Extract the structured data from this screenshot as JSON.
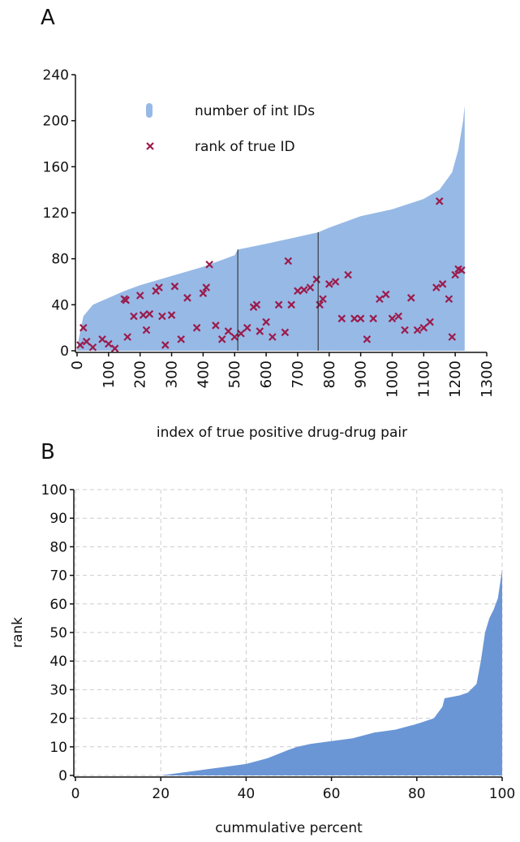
{
  "chart_data": [
    {
      "type": "area_scatter",
      "panel_label": "A",
      "xlabel": "index of true positive drug-drug pair",
      "xlim": [
        0,
        1300
      ],
      "xticks": [
        0,
        100,
        200,
        300,
        400,
        500,
        600,
        700,
        800,
        900,
        1000,
        1100,
        1200,
        1300
      ],
      "ylim": [
        0,
        240
      ],
      "yticks": [
        0,
        40,
        80,
        120,
        160,
        200,
        240
      ],
      "grid": false,
      "vlines": [
        510,
        765
      ],
      "series": [
        {
          "name": "number of int IDs",
          "color": "#97b9e6",
          "kind": "area",
          "x": [
            0,
            5,
            20,
            50,
            100,
            150,
            200,
            300,
            400,
            500,
            510,
            600,
            700,
            765,
            800,
            900,
            1000,
            1100,
            1150,
            1190,
            1210,
            1225,
            1230
          ],
          "values": [
            0,
            10,
            30,
            40,
            46,
            52,
            57,
            65,
            73,
            83,
            88,
            93,
            99,
            103,
            107,
            117,
            123,
            132,
            140,
            155,
            175,
            200,
            213
          ]
        },
        {
          "name": "rank of true ID",
          "color": "#9b1b4b",
          "kind": "scatter",
          "x": [
            10,
            20,
            30,
            50,
            80,
            100,
            120,
            150,
            155,
            160,
            180,
            200,
            210,
            220,
            230,
            250,
            260,
            270,
            280,
            300,
            310,
            330,
            350,
            380,
            400,
            410,
            420,
            440,
            460,
            480,
            500,
            520,
            540,
            560,
            570,
            580,
            600,
            620,
            640,
            660,
            670,
            680,
            700,
            720,
            740,
            760,
            770,
            780,
            800,
            820,
            840,
            860,
            880,
            900,
            920,
            940,
            960,
            980,
            1000,
            1020,
            1040,
            1060,
            1080,
            1100,
            1120,
            1140,
            1150,
            1160,
            1180,
            1190,
            1200,
            1210,
            1220
          ],
          "values": [
            5,
            20,
            8,
            3,
            10,
            6,
            2,
            45,
            44,
            12,
            30,
            48,
            31,
            18,
            32,
            52,
            55,
            30,
            5,
            31,
            56,
            10,
            46,
            20,
            50,
            55,
            75,
            22,
            10,
            17,
            12,
            15,
            20,
            38,
            40,
            17,
            25,
            12,
            40,
            16,
            78,
            40,
            52,
            53,
            55,
            62,
            40,
            45,
            58,
            60,
            28,
            66,
            28,
            28,
            10,
            28,
            45,
            49,
            28,
            30,
            18,
            46,
            18,
            20,
            25,
            55,
            130,
            58,
            45,
            12,
            66,
            71,
            70
          ]
        }
      ]
    },
    {
      "type": "area",
      "panel_label": "B",
      "xlabel": "cummulative percent",
      "ylabel": "rank",
      "xlim": [
        0,
        100
      ],
      "xticks": [
        0,
        20,
        40,
        60,
        80,
        100
      ],
      "ylim": [
        0,
        100
      ],
      "yticks": [
        0,
        10,
        20,
        30,
        40,
        50,
        60,
        70,
        80,
        90,
        100
      ],
      "grid": true,
      "series": [
        {
          "name": null,
          "color": "#6a96d6",
          "kind": "area",
          "x": [
            0,
            20,
            25,
            30,
            35,
            40,
            45,
            50,
            52,
            55,
            60,
            65,
            70,
            75,
            80,
            84,
            85,
            86,
            86.5,
            90,
            92,
            94,
            95,
            96,
            97,
            98,
            99,
            99.5,
            100
          ],
          "values": [
            0,
            0,
            1,
            2,
            3,
            4,
            6,
            9,
            10,
            11,
            12,
            13,
            15,
            16,
            18,
            20,
            22,
            24,
            27,
            28,
            29,
            32,
            40,
            50,
            55,
            58,
            62,
            67,
            72
          ]
        }
      ]
    }
  ]
}
